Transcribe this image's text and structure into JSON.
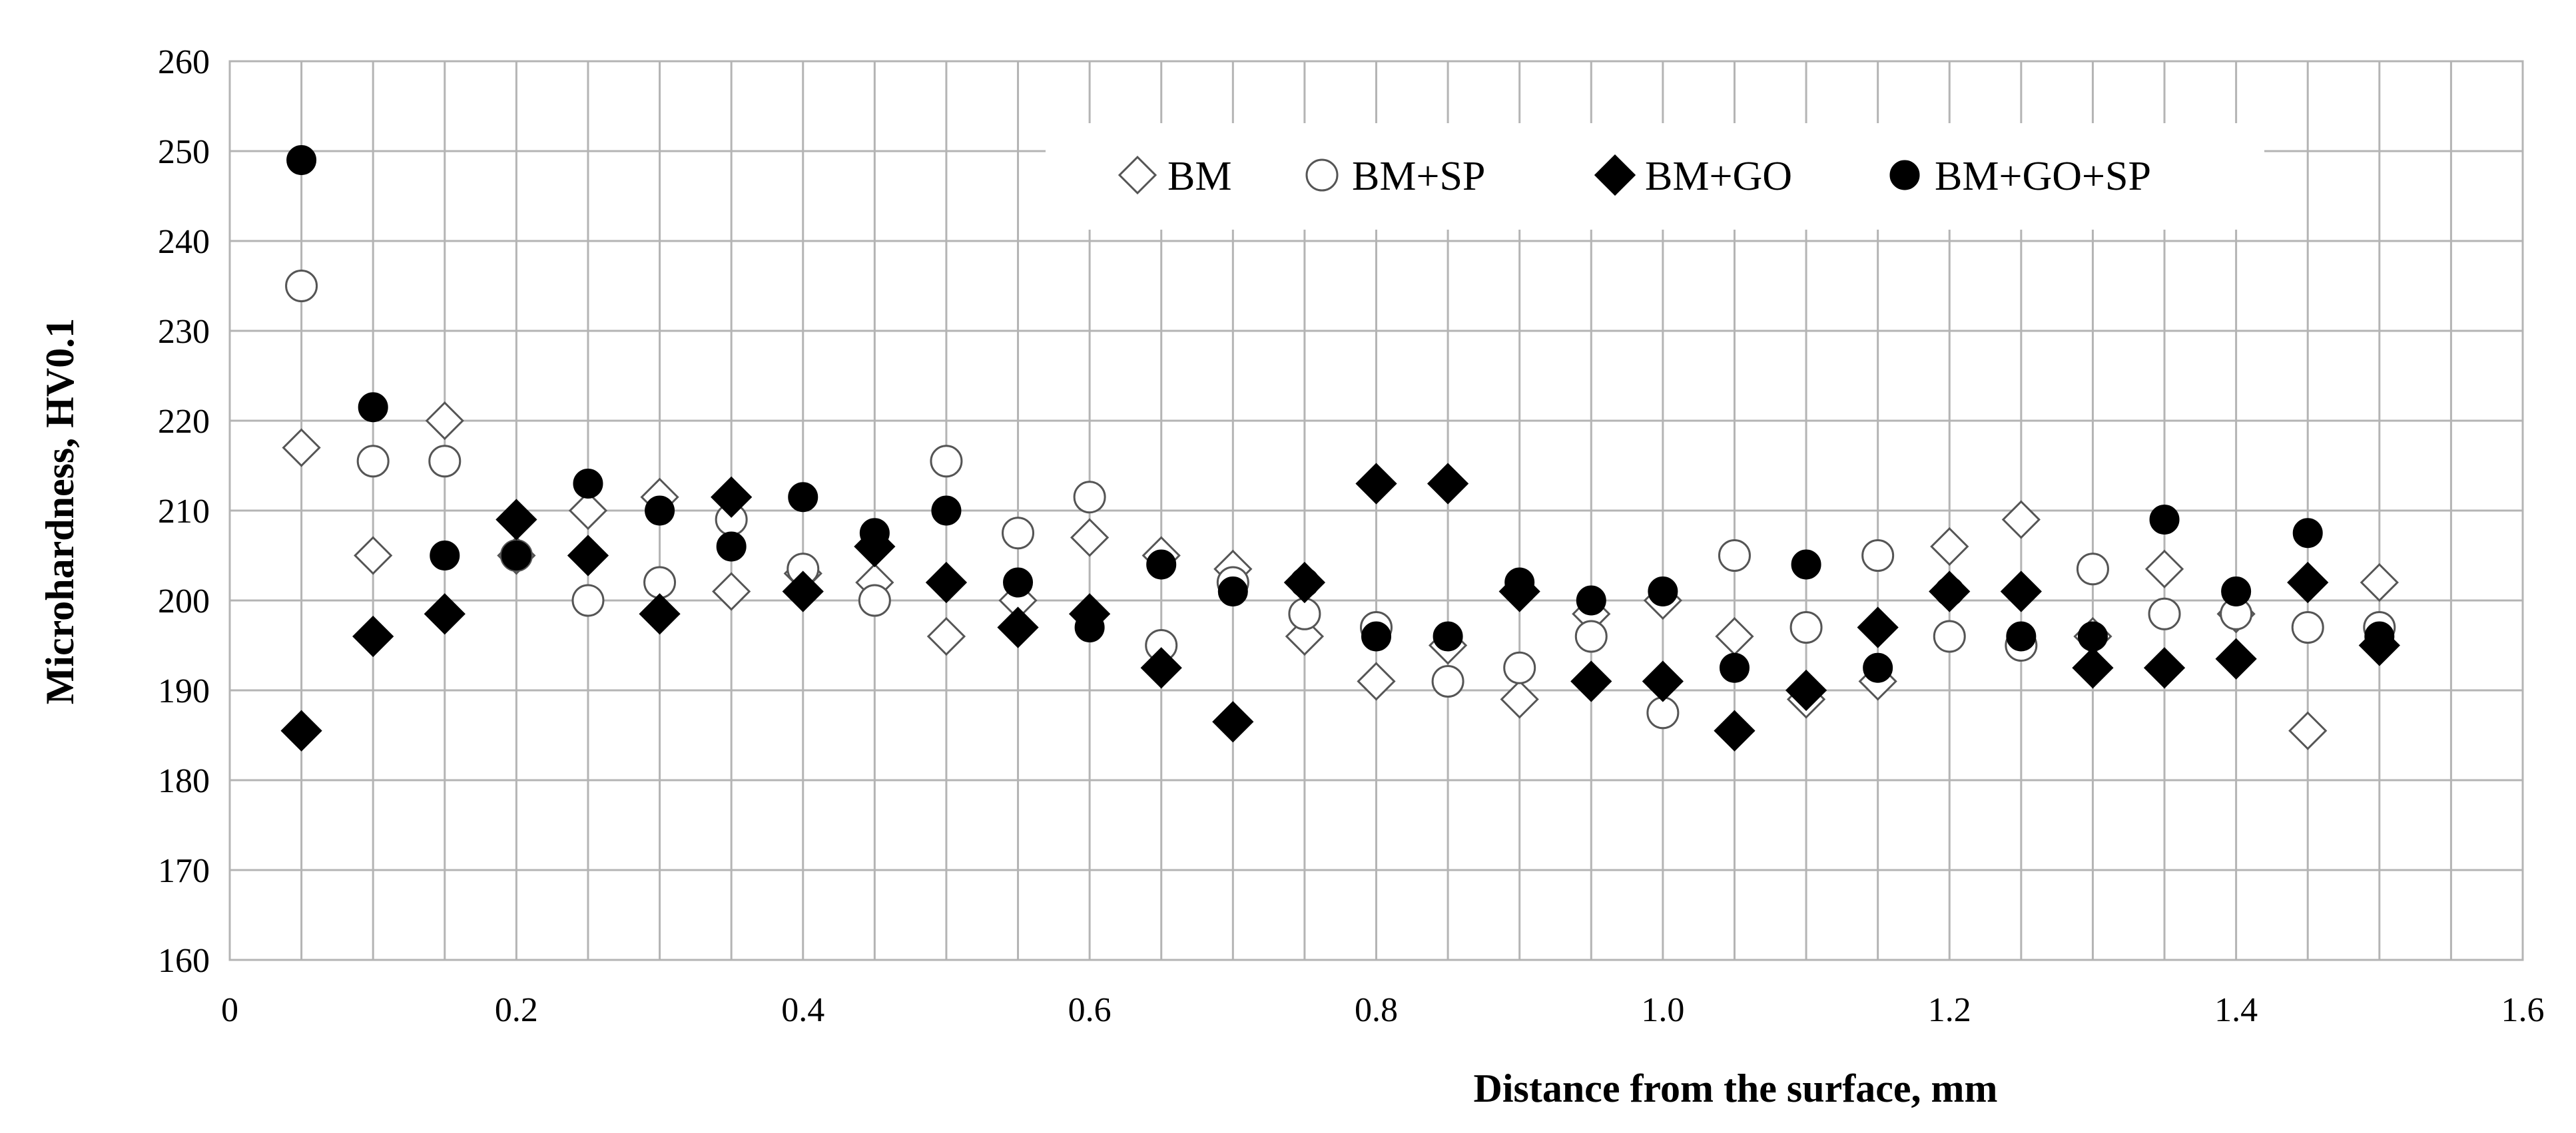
{
  "chart_data": {
    "type": "scatter",
    "xlabel": "Distance from the surface, mm",
    "ylabel": "Microhardness, HV0.1",
    "xlim": [
      0,
      1.6
    ],
    "ylim": [
      160,
      260
    ],
    "xticks": [
      0,
      0.2,
      0.4,
      0.6,
      0.8,
      1.0,
      1.2,
      1.4,
      1.6
    ],
    "xtick_labels": [
      "0",
      "0.2",
      "0.4",
      "0.6",
      "0.8",
      "1.0",
      "1.2",
      "1.4",
      "1.6"
    ],
    "yticks": [
      160,
      170,
      180,
      190,
      200,
      210,
      220,
      230,
      240,
      250,
      260
    ],
    "grid": true,
    "legend_position": "top-right",
    "x": [
      0.05,
      0.1,
      0.15,
      0.2,
      0.25,
      0.3,
      0.35,
      0.4,
      0.45,
      0.5,
      0.55,
      0.6,
      0.65,
      0.7,
      0.75,
      0.8,
      0.85,
      0.9,
      0.95,
      1.0,
      1.05,
      1.1,
      1.15,
      1.2,
      1.25,
      1.3,
      1.35,
      1.4,
      1.45,
      1.5
    ],
    "series": [
      {
        "name": "BM",
        "marker": "diamond-open",
        "values": [
          217,
          205,
          220,
          205,
          210,
          211.5,
          201,
          203,
          202,
          196,
          200,
          207,
          205,
          203.5,
          196,
          191,
          195,
          189,
          198.5,
          200,
          196,
          189,
          191,
          206,
          209,
          196,
          203.5,
          198.5,
          185.5,
          202
        ]
      },
      {
        "name": "BM+SP",
        "marker": "circle-open",
        "values": [
          235,
          215.5,
          215.5,
          205,
          200,
          202,
          209,
          203.5,
          200,
          215.5,
          207.5,
          211.5,
          195,
          202,
          198.5,
          197,
          191,
          192.5,
          196,
          187.5,
          205,
          197,
          205,
          196,
          195,
          203.5,
          198.5,
          198.5,
          197,
          197
        ]
      },
      {
        "name": "BM+GO",
        "marker": "diamond-filled",
        "values": [
          185.5,
          196,
          198.5,
          209,
          205,
          198.5,
          211.5,
          201,
          206,
          202,
          197,
          198.5,
          192.5,
          186.5,
          202,
          213,
          213,
          201,
          191,
          191,
          185.5,
          190,
          197,
          201,
          201,
          192.5,
          192.5,
          193.5,
          202,
          195
        ]
      },
      {
        "name": "BM+GO+SP",
        "marker": "circle-filled",
        "values": [
          249,
          221.5,
          205,
          205,
          213,
          210,
          206,
          211.5,
          207.5,
          210,
          202,
          197,
          204,
          201,
          202,
          196,
          196,
          202,
          200,
          201,
          192.5,
          204,
          192.5,
          201,
          196,
          196,
          209,
          201,
          207.5,
          196
        ]
      }
    ]
  }
}
